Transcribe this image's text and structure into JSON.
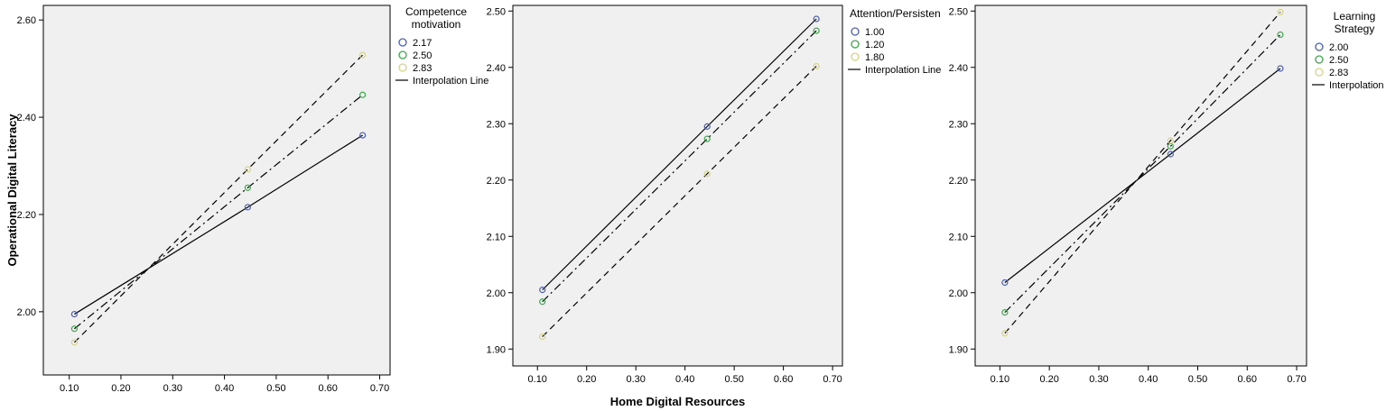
{
  "chart_data": [
    {
      "type": "line",
      "ylabel": "Operational Digital Literacy",
      "xlabel": "",
      "x": [
        0.11,
        0.445,
        0.667
      ],
      "xlim": [
        0.05,
        0.72
      ],
      "ylim": [
        1.87,
        2.63
      ],
      "xticks": [
        "0.10",
        "0.20",
        "0.30",
        "0.40",
        "0.50",
        "0.60",
        "0.70"
      ],
      "yticks": [
        "2.00",
        "2.20",
        "2.40",
        "2.60"
      ],
      "legend_title": [
        "Competence",
        "motivation"
      ],
      "legend_position": "right",
      "grid": false,
      "series": [
        {
          "name": "2.17",
          "color": "#4a5fb0",
          "dash": "solid",
          "values": [
            1.995,
            2.215,
            2.363
          ]
        },
        {
          "name": "2.50",
          "color": "#3aa84a",
          "dash": "dashdot",
          "values": [
            1.965,
            2.255,
            2.446
          ]
        },
        {
          "name": "2.83",
          "color": "#d6d28a",
          "dash": "dashed",
          "values": [
            1.937,
            2.293,
            2.528
          ]
        }
      ],
      "interpolation_label": "Interpolation Line"
    },
    {
      "type": "line",
      "ylabel": "",
      "xlabel": "Home Digital Resources",
      "x": [
        0.11,
        0.445,
        0.667
      ],
      "xlim": [
        0.05,
        0.72
      ],
      "ylim": [
        1.87,
        2.51
      ],
      "xticks": [
        "0.10",
        "0.20",
        "0.30",
        "0.40",
        "0.50",
        "0.60",
        "0.70"
      ],
      "yticks": [
        "1.90",
        "2.00",
        "2.10",
        "2.20",
        "2.30",
        "2.40",
        "2.50"
      ],
      "legend_title": [
        "Attention/Persisten"
      ],
      "legend_position": "right",
      "grid": false,
      "series": [
        {
          "name": "1.00",
          "color": "#4a5fb0",
          "dash": "solid",
          "values": [
            2.005,
            2.295,
            2.486
          ]
        },
        {
          "name": "1.20",
          "color": "#3aa84a",
          "dash": "dashdot",
          "values": [
            1.984,
            2.273,
            2.465
          ]
        },
        {
          "name": "1.80",
          "color": "#d6d28a",
          "dash": "dashed",
          "values": [
            1.922,
            2.211,
            2.402
          ]
        }
      ],
      "interpolation_label": "Interpolation Line"
    },
    {
      "type": "line",
      "ylabel": "",
      "xlabel": "",
      "x": [
        0.11,
        0.445,
        0.667
      ],
      "xlim": [
        0.05,
        0.72
      ],
      "ylim": [
        1.87,
        2.51
      ],
      "xticks": [
        "0.10",
        "0.20",
        "0.30",
        "0.40",
        "0.50",
        "0.60",
        "0.70"
      ],
      "yticks": [
        "1.90",
        "2.00",
        "2.10",
        "2.20",
        "2.30",
        "2.40",
        "2.50"
      ],
      "legend_title": [
        "Learning",
        "Strategy"
      ],
      "legend_position": "right",
      "grid": false,
      "series": [
        {
          "name": "2.00",
          "color": "#4a5fb0",
          "dash": "solid",
          "values": [
            2.018,
            2.246,
            2.398
          ]
        },
        {
          "name": "2.50",
          "color": "#3aa84a",
          "dash": "dashdot",
          "values": [
            1.965,
            2.26,
            2.458
          ]
        },
        {
          "name": "2.83",
          "color": "#d6d28a",
          "dash": "dashed",
          "values": [
            1.928,
            2.27,
            2.498
          ]
        }
      ],
      "interpolation_label": "Interpolation L"
    }
  ]
}
